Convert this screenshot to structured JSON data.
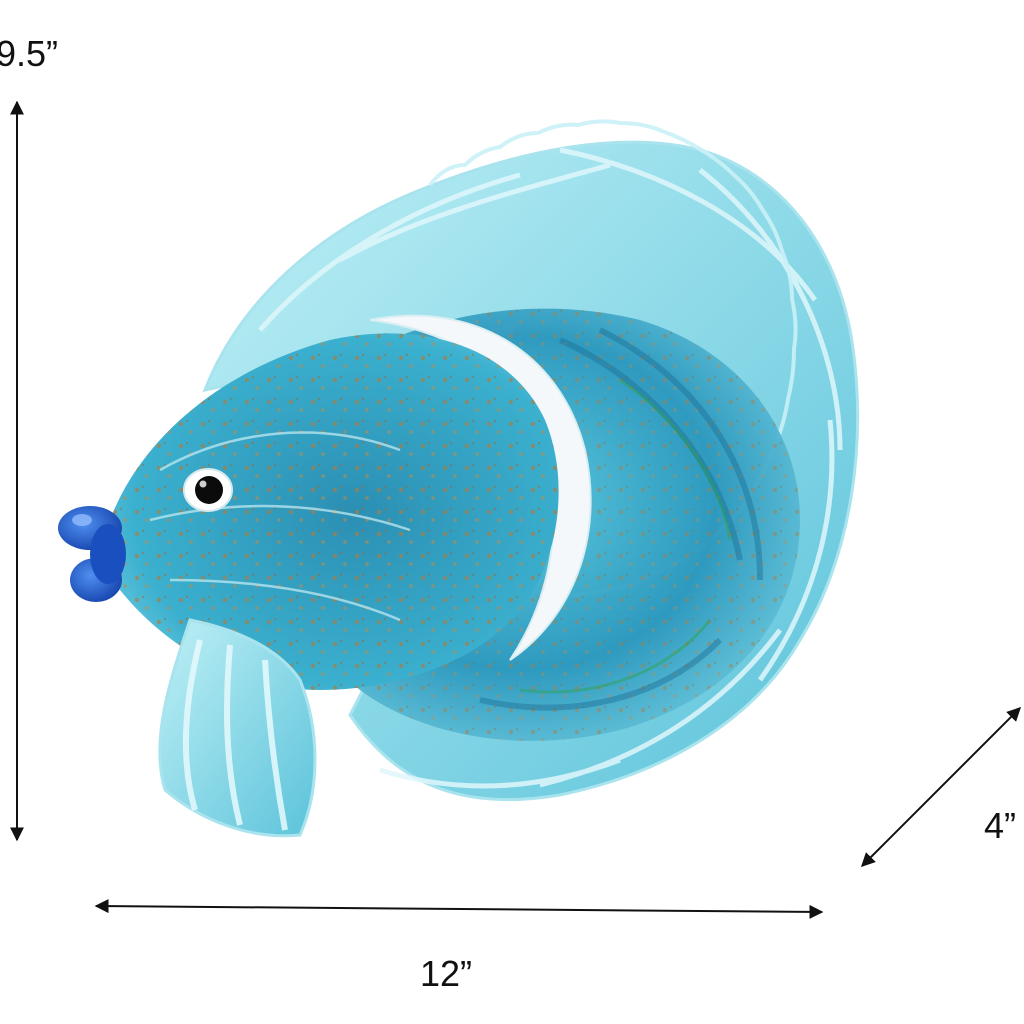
{
  "dimensions": {
    "height": "9.5”",
    "width": "12”",
    "depth": "4”"
  },
  "colors": {
    "background": "#ffffff",
    "arrow": "#111111",
    "glass_turquoise": "#3fb6d3",
    "glass_deep": "#1f7fa6",
    "glass_light": "#9fe3ee",
    "gold_fleck": "#b07a3c",
    "lips_blue": "#1d5fd6",
    "band_white": "#f4f8fa"
  },
  "image": {
    "subject": "fish-sculpture"
  }
}
